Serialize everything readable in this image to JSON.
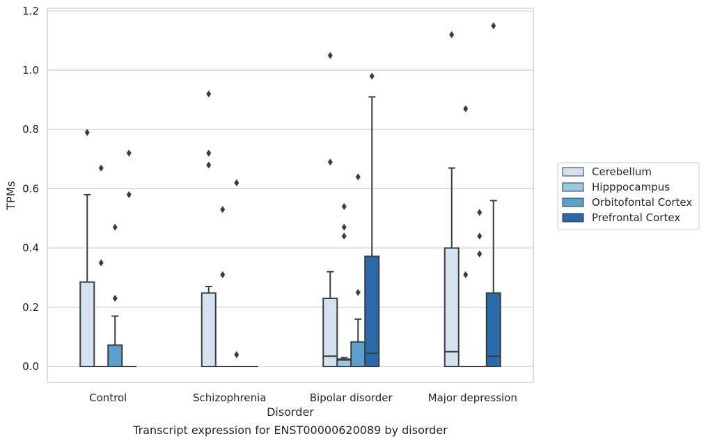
{
  "chart_data": {
    "type": "box",
    "title": "",
    "caption": "Transcript expression for ENST00000620089 by disorder",
    "xlabel": "Disorder",
    "ylabel": "TPMs",
    "ylim": [
      -0.055,
      1.21
    ],
    "yticks": [
      "0.0",
      "0.2",
      "0.4",
      "0.6",
      "0.8",
      "1.0",
      "1.2"
    ],
    "ytick_values": [
      0,
      0.2,
      0.4,
      0.6,
      0.8,
      1.0,
      1.2
    ],
    "categories": [
      "Control",
      "Schizophrenia",
      "Bipolar disorder",
      "Major depression"
    ],
    "grid": "horizontal",
    "legend_position": "right",
    "series": [
      {
        "name": "Cerebellum",
        "color": "#d3e1f0",
        "boxes": [
          {
            "q1": 0,
            "median": 0,
            "q3": 0.285,
            "whisker_low": 0,
            "whisker_high": 0.58,
            "outliers": [
              0.79
            ]
          },
          {
            "q1": 0,
            "median": 0,
            "q3": 0.248,
            "whisker_low": 0,
            "whisker_high": 0.27,
            "outliers": [
              0.68,
              0.72,
              0.92
            ]
          },
          {
            "q1": 0,
            "median": 0.035,
            "q3": 0.23,
            "whisker_low": 0,
            "whisker_high": 0.32,
            "outliers": [
              0.69,
              1.05
            ]
          },
          {
            "q1": 0,
            "median": 0.05,
            "q3": 0.4,
            "whisker_low": 0,
            "whisker_high": 0.67,
            "outliers": [
              1.12
            ]
          }
        ]
      },
      {
        "name": "Hipppocampus",
        "color": "#9ac8e0",
        "boxes": [
          {
            "q1": 0,
            "median": 0,
            "q3": 0,
            "whisker_low": 0,
            "whisker_high": 0,
            "outliers": [
              0.35,
              0.67
            ]
          },
          {
            "q1": 0,
            "median": 0,
            "q3": 0,
            "whisker_low": 0,
            "whisker_high": 0,
            "outliers": [
              0.31,
              0.53
            ]
          },
          {
            "q1": 0,
            "median": 0.022,
            "q3": 0.025,
            "whisker_low": 0,
            "whisker_high": 0.03,
            "outliers": [
              0.44,
              0.47,
              0.54
            ]
          },
          {
            "q1": 0,
            "median": 0,
            "q3": 0,
            "whisker_low": 0,
            "whisker_high": 0,
            "outliers": [
              0.31,
              0.87
            ]
          }
        ]
      },
      {
        "name": "Orbitofontal Cortex",
        "color": "#5aa0cd",
        "boxes": [
          {
            "q1": 0,
            "median": 0,
            "q3": 0.072,
            "whisker_low": 0,
            "whisker_high": 0.17,
            "outliers": [
              0.23,
              0.47
            ]
          },
          {
            "q1": 0,
            "median": 0,
            "q3": 0,
            "whisker_low": 0,
            "whisker_high": 0,
            "outliers": [
              0.04,
              0.62
            ]
          },
          {
            "q1": 0,
            "median": 0,
            "q3": 0.083,
            "whisker_low": 0,
            "whisker_high": 0.16,
            "outliers": [
              0.25,
              0.64
            ]
          },
          {
            "q1": 0,
            "median": 0,
            "q3": 0,
            "whisker_low": 0,
            "whisker_high": 0,
            "outliers": [
              0.38,
              0.44,
              0.52
            ]
          }
        ]
      },
      {
        "name": "Prefrontal Cortex",
        "color": "#2a6aa8",
        "boxes": [
          {
            "q1": 0,
            "median": 0,
            "q3": 0,
            "whisker_low": 0,
            "whisker_high": 0,
            "outliers": [
              0.58,
              0.72
            ]
          },
          {
            "q1": 0,
            "median": 0,
            "q3": 0,
            "whisker_low": 0,
            "whisker_high": 0,
            "outliers": []
          },
          {
            "q1": 0,
            "median": 0.045,
            "q3": 0.372,
            "whisker_low": 0,
            "whisker_high": 0.91,
            "outliers": [
              0.98
            ]
          },
          {
            "q1": 0,
            "median": 0.035,
            "q3": 0.248,
            "whisker_low": 0,
            "whisker_high": 0.56,
            "outliers": [
              1.15
            ]
          }
        ]
      }
    ]
  }
}
